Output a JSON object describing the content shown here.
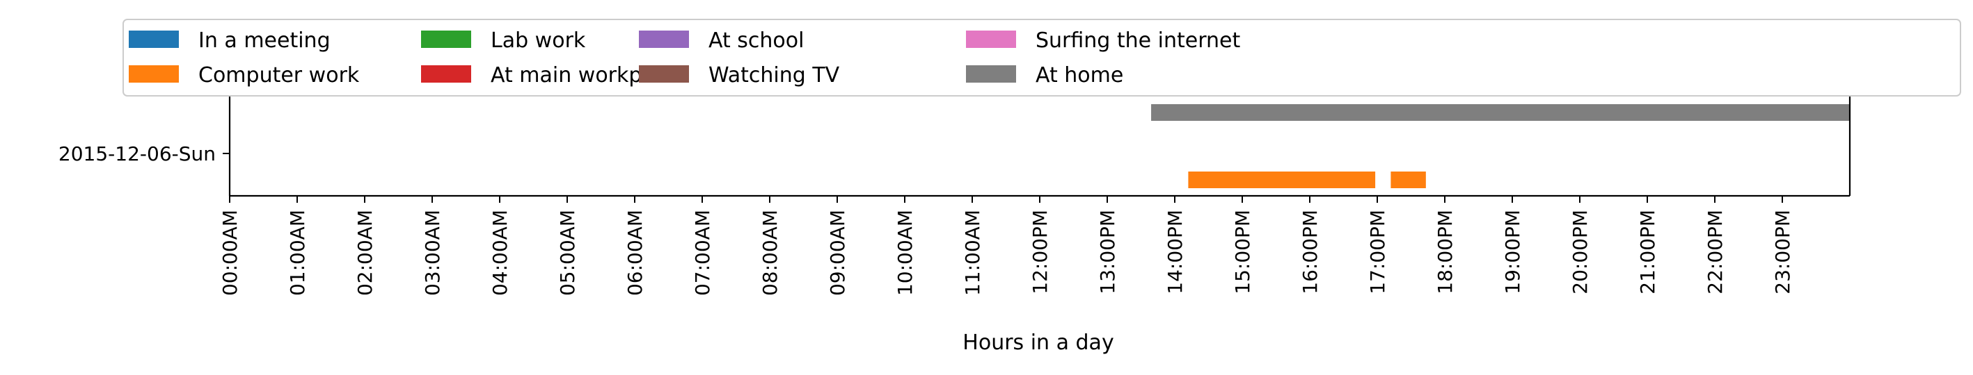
{
  "chart_data": {
    "type": "timeline",
    "xlabel": "Hours in a day",
    "x_unit": "hours",
    "xlim": [
      0,
      24
    ],
    "x_ticks": [
      {
        "value": 0,
        "label": "00:00AM"
      },
      {
        "value": 1,
        "label": "01:00AM"
      },
      {
        "value": 2,
        "label": "02:00AM"
      },
      {
        "value": 3,
        "label": "03:00AM"
      },
      {
        "value": 4,
        "label": "04:00AM"
      },
      {
        "value": 5,
        "label": "05:00AM"
      },
      {
        "value": 6,
        "label": "06:00AM"
      },
      {
        "value": 7,
        "label": "07:00AM"
      },
      {
        "value": 8,
        "label": "08:00AM"
      },
      {
        "value": 9,
        "label": "09:00AM"
      },
      {
        "value": 10,
        "label": "10:00AM"
      },
      {
        "value": 11,
        "label": "11:00AM"
      },
      {
        "value": 12,
        "label": "12:00PM"
      },
      {
        "value": 13,
        "label": "13:00PM"
      },
      {
        "value": 14,
        "label": "14:00PM"
      },
      {
        "value": 15,
        "label": "15:00PM"
      },
      {
        "value": 16,
        "label": "16:00PM"
      },
      {
        "value": 17,
        "label": "17:00PM"
      },
      {
        "value": 18,
        "label": "18:00PM"
      },
      {
        "value": 19,
        "label": "19:00PM"
      },
      {
        "value": 20,
        "label": "20:00PM"
      },
      {
        "value": 21,
        "label": "21:00PM"
      },
      {
        "value": 22,
        "label": "22:00PM"
      },
      {
        "value": 23,
        "label": "23:00PM"
      }
    ],
    "rows": [
      "2015-12-06-Sun"
    ],
    "legend_position": "top",
    "legend_columns": 7,
    "categories": [
      {
        "name": "In a meeting",
        "color": "#1f77b4"
      },
      {
        "name": "Computer work",
        "color": "#ff7f0e"
      },
      {
        "name": "Lab work",
        "color": "#2ca02c"
      },
      {
        "name": "At main workplace",
        "color": "#d62728"
      },
      {
        "name": "At school",
        "color": "#9467bd"
      },
      {
        "name": "Watching TV",
        "color": "#8c564b"
      },
      {
        "name": "Surfing the internet",
        "color": "#e377c2"
      },
      {
        "name": "At home",
        "color": "#7f7f7f"
      }
    ],
    "segments": [
      {
        "category": "At home",
        "row": "2015-12-06-Sun",
        "start": 13.65,
        "end": 24.0
      },
      {
        "category": "Computer work",
        "row": "2015-12-06-Sun",
        "start": 14.2,
        "end": 16.97
      },
      {
        "category": "Computer work",
        "row": "2015-12-06-Sun",
        "start": 17.2,
        "end": 17.72
      }
    ]
  }
}
